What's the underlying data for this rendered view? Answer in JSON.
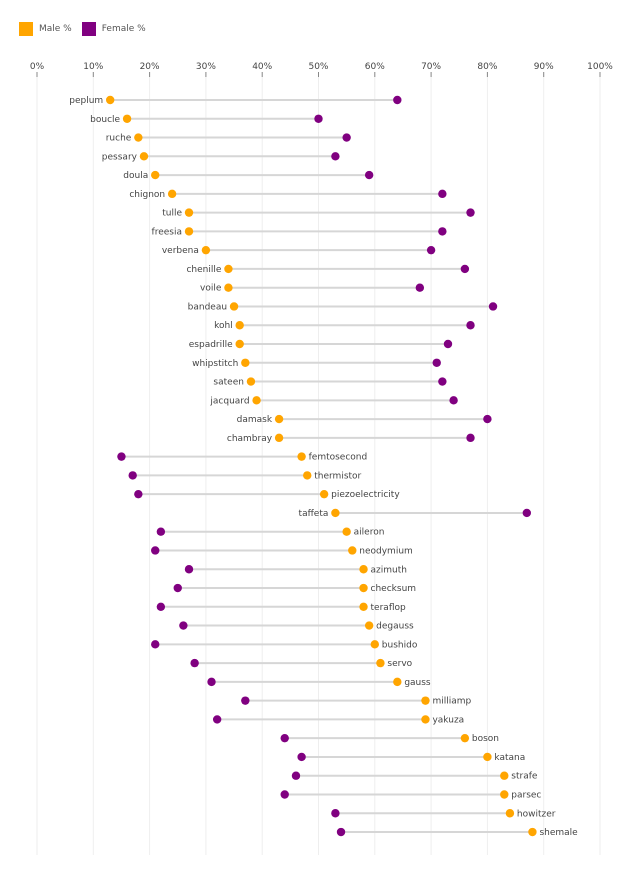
{
  "chart_data": {
    "type": "dumbbell",
    "legend": [
      {
        "name": "Male %",
        "color": "#FFA500"
      },
      {
        "name": "Female %",
        "color": "#800080"
      }
    ],
    "legend_position": "top-left",
    "xlim": [
      0,
      100
    ],
    "x_ticks": [
      "0%",
      "10%",
      "20%",
      "30%",
      "40%",
      "50%",
      "60%",
      "70%",
      "80%",
      "90%",
      "100%"
    ],
    "grid": true,
    "rows": [
      {
        "label": "peplum",
        "male": 13,
        "female": 64
      },
      {
        "label": "boucle",
        "male": 16,
        "female": 50
      },
      {
        "label": "ruche",
        "male": 18,
        "female": 55
      },
      {
        "label": "pessary",
        "male": 19,
        "female": 53
      },
      {
        "label": "doula",
        "male": 21,
        "female": 59
      },
      {
        "label": "chignon",
        "male": 24,
        "female": 72
      },
      {
        "label": "tulle",
        "male": 27,
        "female": 77
      },
      {
        "label": "freesia",
        "male": 27,
        "female": 72
      },
      {
        "label": "verbena",
        "male": 30,
        "female": 70
      },
      {
        "label": "chenille",
        "male": 34,
        "female": 76
      },
      {
        "label": "voile",
        "male": 34,
        "female": 68
      },
      {
        "label": "bandeau",
        "male": 35,
        "female": 81
      },
      {
        "label": "kohl",
        "male": 36,
        "female": 77
      },
      {
        "label": "espadrille",
        "male": 36,
        "female": 73
      },
      {
        "label": "whipstitch",
        "male": 37,
        "female": 71
      },
      {
        "label": "sateen",
        "male": 38,
        "female": 72
      },
      {
        "label": "jacquard",
        "male": 39,
        "female": 74
      },
      {
        "label": "damask",
        "male": 43,
        "female": 80
      },
      {
        "label": "chambray",
        "male": 43,
        "female": 77
      },
      {
        "label": "femtosecond",
        "male": 47,
        "female": 15
      },
      {
        "label": "thermistor",
        "male": 48,
        "female": 17
      },
      {
        "label": "piezoelectricity",
        "male": 51,
        "female": 18
      },
      {
        "label": "taffeta",
        "male": 53,
        "female": 87
      },
      {
        "label": "aileron",
        "male": 55,
        "female": 22
      },
      {
        "label": "neodymium",
        "male": 56,
        "female": 21
      },
      {
        "label": "azimuth",
        "male": 58,
        "female": 27
      },
      {
        "label": "checksum",
        "male": 58,
        "female": 25
      },
      {
        "label": "teraflop",
        "male": 58,
        "female": 22
      },
      {
        "label": "degauss",
        "male": 59,
        "female": 26
      },
      {
        "label": "bushido",
        "male": 60,
        "female": 21
      },
      {
        "label": "servo",
        "male": 61,
        "female": 28
      },
      {
        "label": "gauss",
        "male": 64,
        "female": 31
      },
      {
        "label": "milliamp",
        "male": 69,
        "female": 37
      },
      {
        "label": "yakuza",
        "male": 69,
        "female": 32
      },
      {
        "label": "boson",
        "male": 76,
        "female": 44
      },
      {
        "label": "katana",
        "male": 80,
        "female": 47
      },
      {
        "label": "strafe",
        "male": 83,
        "female": 46
      },
      {
        "label": "parsec",
        "male": 83,
        "female": 44
      },
      {
        "label": "howitzer",
        "male": 84,
        "female": 53
      },
      {
        "label": "shemale",
        "male": 88,
        "female": 54
      }
    ]
  }
}
